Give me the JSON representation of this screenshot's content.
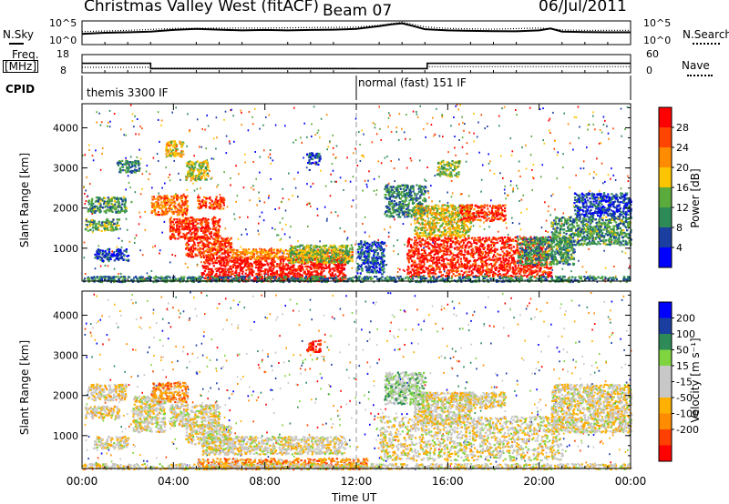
{
  "header": {
    "radar": "Christmas Valley West (fitACF)",
    "beam": "Beam 07",
    "date": "06/Jul/2011"
  },
  "top_panels": {
    "nsky_label": "N.Sky",
    "nsearch_label": "N.Search",
    "nsky_ticks": [
      "10^5",
      "10^0"
    ],
    "nsearch_ticks": [
      "10^5",
      "10^0"
    ],
    "freq_label_1": "Freq.",
    "freq_label_2": "[MHz]",
    "freq_ticks": [
      "18",
      "8"
    ],
    "nave_label": "Nave",
    "nave_ticks": [
      "60",
      "0"
    ],
    "cpid_label": "CPID",
    "cpid_1": "themis 3300 IF",
    "cpid_2": "normal (fast) 151 IF"
  },
  "colors": {
    "power": [
      "#0000ff",
      "#1a3fa0",
      "#2e8b57",
      "#5aaa3c",
      "#ffc400",
      "#ff8c00",
      "#ff4500",
      "#ff0000"
    ],
    "velocity": [
      "#ff0000",
      "#ff4000",
      "#ff8c00",
      "#ffb000",
      "#c8c8c8",
      "#c8c8c8",
      "#7fd43f",
      "#2e8b57",
      "#1a3fa0",
      "#0000ff"
    ]
  },
  "chart_data": [
    {
      "type": "heatmap",
      "name": "Power",
      "ylabel": "Slant Range [km]",
      "yticks": [
        "1000",
        "2000",
        "3000",
        "4000"
      ],
      "ylim": [
        180,
        4600
      ],
      "colorbar_label": "Power [dB]",
      "colorbar_ticks": [
        "4",
        "8",
        "12",
        "16",
        "20",
        "24",
        "28"
      ],
      "regions": [
        {
          "t0": 0.2,
          "t1": 1.9,
          "r0": 1900,
          "r1": 2300,
          "level": 0.35
        },
        {
          "t0": 0.1,
          "t1": 1.6,
          "r0": 1450,
          "r1": 1750,
          "level": 0.4
        },
        {
          "t0": 0.5,
          "t1": 2.0,
          "r0": 700,
          "r1": 1000,
          "level": 0.15
        },
        {
          "t0": 1.5,
          "t1": 2.5,
          "r0": 2900,
          "r1": 3200,
          "level": 0.3
        },
        {
          "t0": 3.0,
          "t1": 4.6,
          "r0": 1850,
          "r1": 2350,
          "level": 0.75
        },
        {
          "t0": 3.8,
          "t1": 6.0,
          "r0": 1250,
          "r1": 1800,
          "level": 0.9
        },
        {
          "t0": 4.5,
          "t1": 6.5,
          "r0": 800,
          "r1": 1300,
          "level": 0.85
        },
        {
          "t0": 5.2,
          "t1": 11.5,
          "r0": 200,
          "r1": 800,
          "level": 0.95
        },
        {
          "t0": 6.5,
          "t1": 11.8,
          "r0": 750,
          "r1": 1000,
          "level": 0.7
        },
        {
          "t0": 9.0,
          "t1": 11.8,
          "r0": 650,
          "r1": 1100,
          "level": 0.45
        },
        {
          "t0": 5.0,
          "t1": 6.2,
          "r0": 2000,
          "r1": 2300,
          "level": 0.8
        },
        {
          "t0": 3.6,
          "t1": 4.4,
          "r0": 3300,
          "r1": 3700,
          "level": 0.6
        },
        {
          "t0": 4.5,
          "t1": 5.5,
          "r0": 2700,
          "r1": 3200,
          "level": 0.5
        },
        {
          "t0": 9.8,
          "t1": 10.4,
          "r0": 3100,
          "r1": 3400,
          "level": 0.15
        },
        {
          "t0": 12.0,
          "t1": 13.2,
          "r0": 400,
          "r1": 1200,
          "level": 0.2
        },
        {
          "t0": 13.2,
          "t1": 15.0,
          "r0": 1800,
          "r1": 2600,
          "level": 0.3
        },
        {
          "t0": 14.5,
          "t1": 17.0,
          "r0": 1300,
          "r1": 2100,
          "level": 0.55
        },
        {
          "t0": 14.2,
          "t1": 20.5,
          "r0": 300,
          "r1": 1300,
          "level": 0.9
        },
        {
          "t0": 16.5,
          "t1": 18.5,
          "r0": 1700,
          "r1": 2100,
          "level": 0.85
        },
        {
          "t0": 15.5,
          "t1": 16.5,
          "r0": 2800,
          "r1": 3200,
          "level": 0.45
        },
        {
          "t0": 19.0,
          "t1": 21.5,
          "r0": 600,
          "r1": 1300,
          "level": 0.35
        },
        {
          "t0": 20.5,
          "t1": 24.0,
          "r0": 1100,
          "r1": 1800,
          "level": 0.35
        },
        {
          "t0": 21.5,
          "t1": 24.0,
          "r0": 1800,
          "r1": 2400,
          "level": 0.15
        },
        {
          "t0": 0.0,
          "t1": 24.0,
          "r0": 180,
          "r1": 320,
          "level": 0.3
        }
      ]
    },
    {
      "type": "heatmap",
      "name": "Velocity",
      "ylabel": "Slant Range [km]",
      "yticks": [
        "1000",
        "2000",
        "3000",
        "4000"
      ],
      "ylim": [
        180,
        4600
      ],
      "xlabel": "Time UT",
      "xticks": [
        "00:00",
        "04:00",
        "08:00",
        "12:00",
        "16:00",
        "20:00",
        "00:00"
      ],
      "xlim": [
        0,
        24
      ],
      "colorbar_label": "Velocity [m s⁻¹]",
      "colorbar_ticks": [
        "200",
        "100",
        "50",
        "15",
        "-15",
        "-50",
        "-100",
        "-200"
      ],
      "regions": [
        {
          "t0": 0.2,
          "t1": 1.9,
          "r0": 1900,
          "r1": 2300,
          "level": 0.45
        },
        {
          "t0": 0.1,
          "t1": 1.6,
          "r0": 1450,
          "r1": 1750,
          "level": 0.45
        },
        {
          "t0": 0.5,
          "t1": 2.0,
          "r0": 700,
          "r1": 1000,
          "level": 0.45
        },
        {
          "t0": 2.2,
          "t1": 3.6,
          "r0": 1100,
          "r1": 2000,
          "level": 0.47
        },
        {
          "t0": 3.0,
          "t1": 4.6,
          "r0": 1850,
          "r1": 2350,
          "level": 0.3
        },
        {
          "t0": 3.8,
          "t1": 6.0,
          "r0": 1250,
          "r1": 1800,
          "level": 0.47
        },
        {
          "t0": 4.5,
          "t1": 6.5,
          "r0": 800,
          "r1": 1300,
          "level": 0.47
        },
        {
          "t0": 5.2,
          "t1": 11.5,
          "r0": 550,
          "r1": 1000,
          "level": 0.47
        },
        {
          "t0": 5.0,
          "t1": 12.5,
          "r0": 180,
          "r1": 450,
          "level": 0.28
        },
        {
          "t0": 9.8,
          "t1": 10.4,
          "r0": 3100,
          "r1": 3400,
          "level": 0.05
        },
        {
          "t0": 13.0,
          "t1": 21.0,
          "r0": 400,
          "r1": 1500,
          "level": 0.47
        },
        {
          "t0": 14.5,
          "t1": 17.0,
          "r0": 1300,
          "r1": 2100,
          "level": 0.47
        },
        {
          "t0": 16.5,
          "t1": 18.5,
          "r0": 1700,
          "r1": 2100,
          "level": 0.47
        },
        {
          "t0": 20.5,
          "t1": 24.0,
          "r0": 1100,
          "r1": 2300,
          "level": 0.47
        },
        {
          "t0": 13.2,
          "t1": 15.0,
          "r0": 1800,
          "r1": 2600,
          "level": 0.6
        },
        {
          "t0": 0.0,
          "t1": 24.0,
          "r0": 180,
          "r1": 320,
          "level": 0.47
        }
      ]
    },
    {
      "type": "line",
      "name": "N.Sky",
      "x": [
        0,
        1,
        2,
        3,
        4,
        5,
        6,
        7,
        8,
        9,
        10,
        11,
        12,
        12.5,
        13,
        13.5,
        14,
        14.5,
        15,
        16,
        17,
        18,
        19,
        20,
        20.5,
        21,
        22,
        23,
        24
      ],
      "values": [
        0.45,
        0.5,
        0.52,
        0.55,
        0.62,
        0.66,
        0.63,
        0.6,
        0.62,
        0.6,
        0.62,
        0.63,
        0.66,
        0.72,
        0.78,
        0.85,
        0.9,
        0.78,
        0.65,
        0.6,
        0.58,
        0.57,
        0.56,
        0.6,
        0.68,
        0.55,
        0.53,
        0.52,
        0.52
      ]
    },
    {
      "type": "line",
      "name": "N.Search",
      "x": [
        0,
        2,
        4,
        6,
        8,
        10,
        12,
        13,
        14,
        15,
        16,
        18,
        20,
        21,
        22,
        24
      ],
      "values": [
        0.55,
        0.6,
        0.68,
        0.7,
        0.7,
        0.72,
        0.74,
        0.82,
        0.95,
        0.75,
        0.68,
        0.65,
        0.7,
        0.62,
        0.6,
        0.6
      ]
    },
    {
      "type": "line",
      "name": "Freq",
      "x": [
        0,
        3.0,
        3.0,
        15.1,
        15.1,
        24
      ],
      "values": [
        13.2,
        13.2,
        10.3,
        10.3,
        13.2,
        13.2
      ]
    },
    {
      "type": "line",
      "name": "Nave",
      "x": [
        0,
        3.0,
        3.0,
        12.0,
        12.0,
        15.1,
        15.1,
        24
      ],
      "values": [
        18,
        18,
        15,
        15,
        14,
        14,
        20,
        20
      ]
    }
  ]
}
